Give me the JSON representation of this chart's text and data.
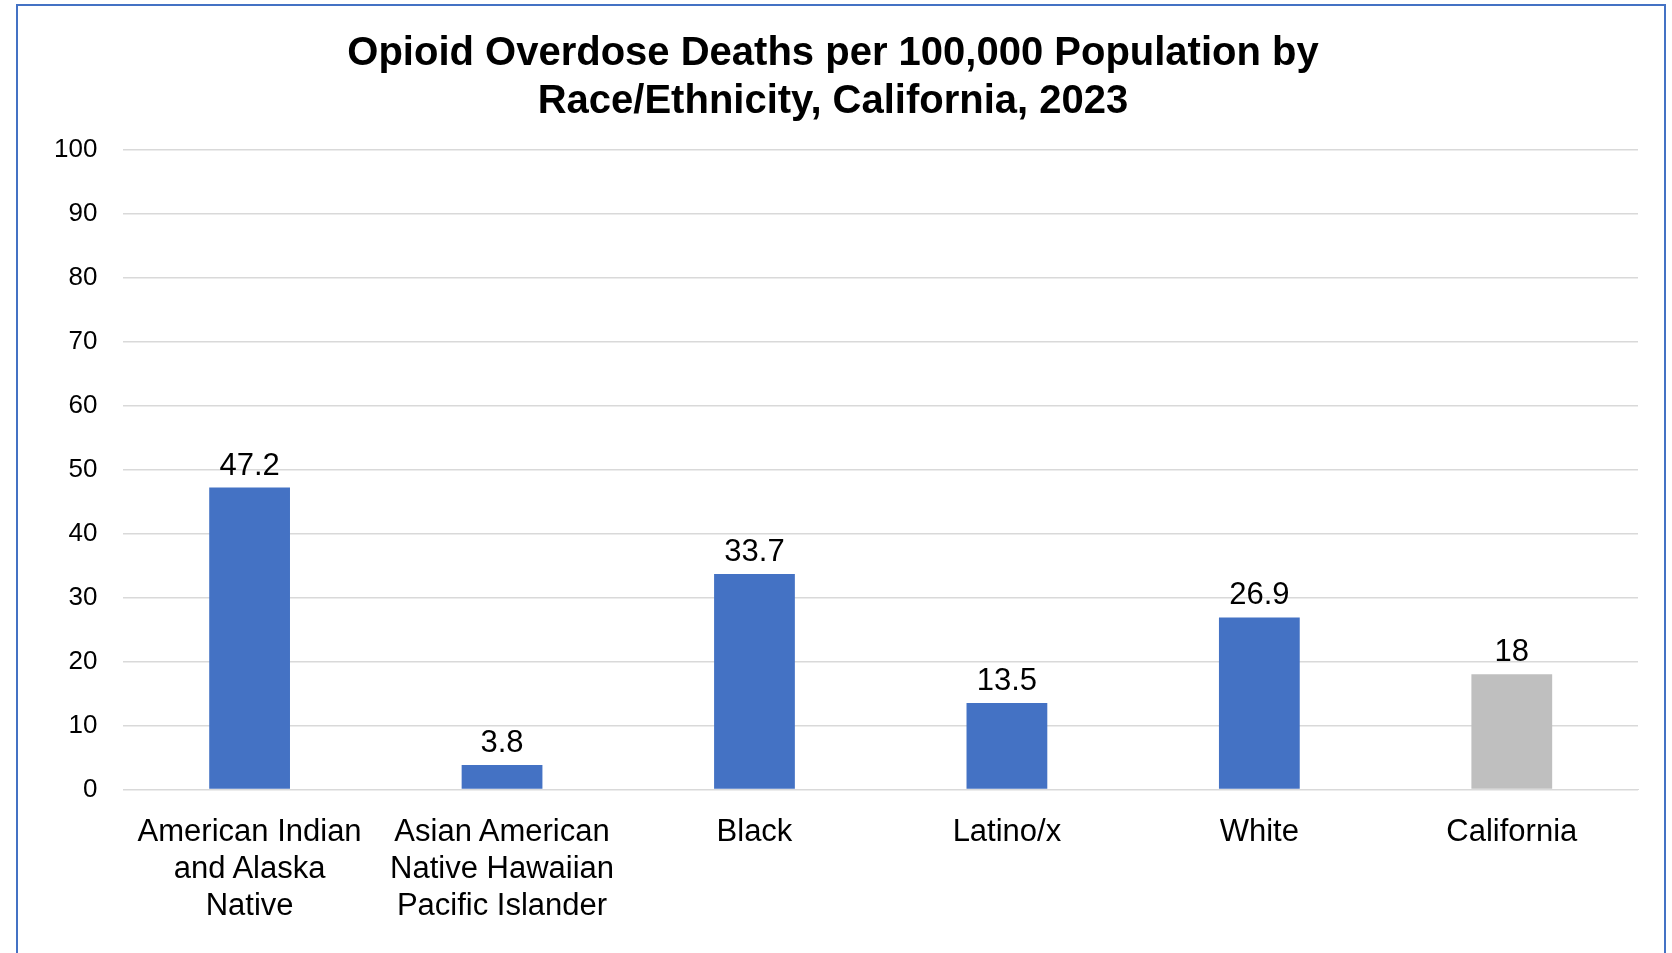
{
  "chart_data": {
    "type": "bar",
    "title": "Opioid Overdose Deaths per 100,000 Population by Race/Ethnicity, California, 2023",
    "categories": [
      "American Indian and Alaska Native",
      "Asian American Native Hawaiian Pacific Islander",
      "Black",
      "Latino/x",
      "White",
      "California"
    ],
    "values": [
      47.2,
      3.8,
      33.7,
      13.5,
      26.9,
      18
    ],
    "colors": [
      "#4472c4",
      "#4472c4",
      "#4472c4",
      "#4472c4",
      "#4472c4",
      "#bfbfbf"
    ],
    "ylim": [
      0,
      100
    ],
    "yticks": [
      0,
      10,
      20,
      30,
      40,
      50,
      60,
      70,
      80,
      90,
      100
    ],
    "grid": "y",
    "legend": false,
    "data_labels": true
  }
}
